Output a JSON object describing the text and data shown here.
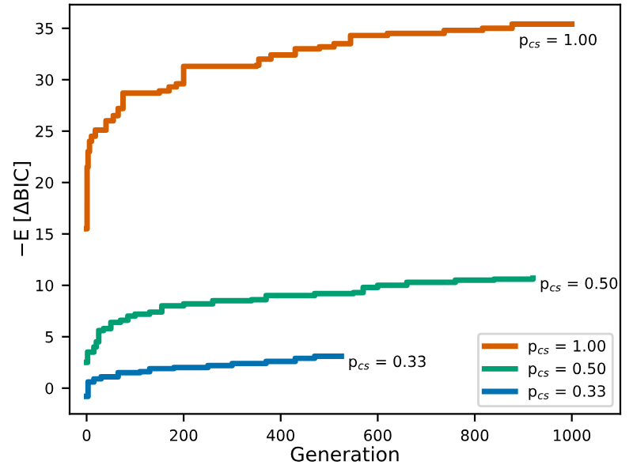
{
  "chart_data": {
    "type": "step",
    "xlabel": "Generation",
    "ylabel": "−E [ΔBIC]",
    "xlim": [
      -35,
      1100
    ],
    "ylim": [
      -2.5,
      37.3
    ],
    "xticks": [
      0,
      200,
      400,
      600,
      800,
      1000
    ],
    "yticks": [
      0,
      5,
      10,
      15,
      20,
      25,
      30,
      35
    ],
    "grid": false,
    "legend": "bottom right",
    "line_style": "solid",
    "marker": "none",
    "series": [
      {
        "name": "p$_{cs}$ = 1.00",
        "color": "#d55e00",
        "x": [
          0,
          1,
          3,
          6,
          10,
          18,
          40,
          55,
          65,
          75,
          150,
          170,
          185,
          200,
          350,
          355,
          380,
          430,
          480,
          510,
          544,
          620,
          737,
          816,
          877,
          1000
        ],
        "values": [
          15.5,
          21.5,
          23,
          24,
          24.5,
          25.1,
          26,
          26.5,
          27.2,
          28.7,
          28.9,
          29.3,
          29.6,
          31.3,
          31.4,
          32,
          32.4,
          33,
          33.2,
          33.5,
          34.3,
          34.5,
          34.8,
          35,
          35.4,
          35.4
        ]
      },
      {
        "name": "p$_{cs}$ = 0.50",
        "color": "#009e73",
        "x": [
          0,
          2,
          15,
          20,
          25,
          35,
          50,
          70,
          85,
          100,
          130,
          155,
          200,
          260,
          340,
          370,
          470,
          550,
          570,
          600,
          660,
          760,
          840,
          920
        ],
        "values": [
          2.5,
          3.5,
          4,
          4.5,
          5.6,
          5.8,
          6.4,
          6.6,
          7.0,
          7.2,
          7.4,
          8,
          8.2,
          8.5,
          8.6,
          9.0,
          9.2,
          9.3,
          9.8,
          10.0,
          10.3,
          10.5,
          10.6,
          10.7
        ]
      },
      {
        "name": "p$_{cs}$ = 0.33",
        "color": "#0072b2",
        "x": [
          0,
          3,
          15,
          30,
          65,
          110,
          130,
          180,
          250,
          300,
          370,
          430,
          470,
          525
        ],
        "values": [
          -0.8,
          0.6,
          0.9,
          1.1,
          1.5,
          1.6,
          1.9,
          2.0,
          2.2,
          2.4,
          2.6,
          2.9,
          3.1,
          3.1
        ]
      }
    ],
    "annotations": [
      {
        "text": "p$_{cs}$ = 1.00",
        "x": 877,
        "y": 34.4
      },
      {
        "text": "p$_{cs}$ = 0.50",
        "x": 920,
        "y": 10.7
      },
      {
        "text": "p$_{cs}$ = 0.33",
        "x": 525,
        "y": 3.1
      }
    ]
  }
}
